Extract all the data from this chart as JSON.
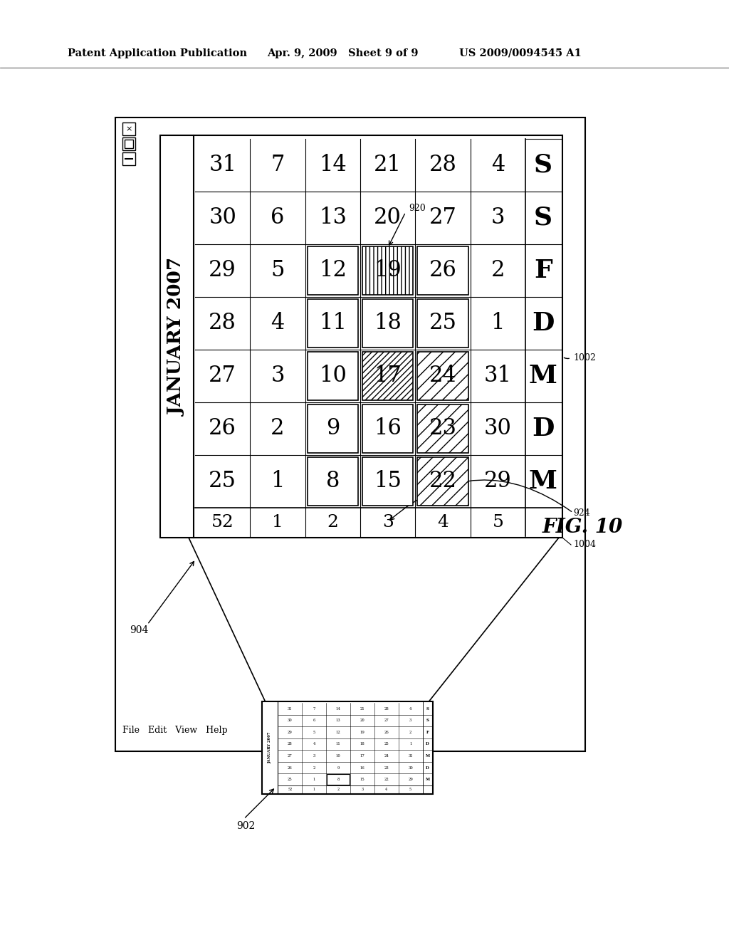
{
  "title_left": "Patent Application Publication",
  "title_mid": "Apr. 9, 2009   Sheet 9 of 9",
  "title_right": "US 2009/0094545 A1",
  "fig_label": "FIG. 10",
  "bg_color": "#ffffff",
  "calendar_title": "JANUARY 2007",
  "days_header": [
    "M",
    "D",
    "M",
    "D",
    "F",
    "S",
    "S"
  ],
  "week_numbers": [
    "52",
    "1",
    "2",
    "3",
    "4",
    "5"
  ],
  "week_rows": [
    [
      "25",
      "26",
      "27",
      "28",
      "29",
      "30",
      "31"
    ],
    [
      "1",
      "2",
      "3",
      "4",
      "5",
      "6",
      "7"
    ],
    [
      "8",
      "9",
      "10",
      "11",
      "12",
      "13",
      "14"
    ],
    [
      "15",
      "16",
      "17",
      "18",
      "19",
      "20",
      "21"
    ],
    [
      "22",
      "23",
      "24",
      "25",
      "26",
      "27",
      "28"
    ],
    [
      "29",
      "30",
      "31",
      "1",
      "2",
      "3",
      "4"
    ]
  ],
  "label_920": "920",
  "label_1002": "1002",
  "label_1004": "1004",
  "label_924": "924",
  "label_904": "904",
  "label_902": "902"
}
